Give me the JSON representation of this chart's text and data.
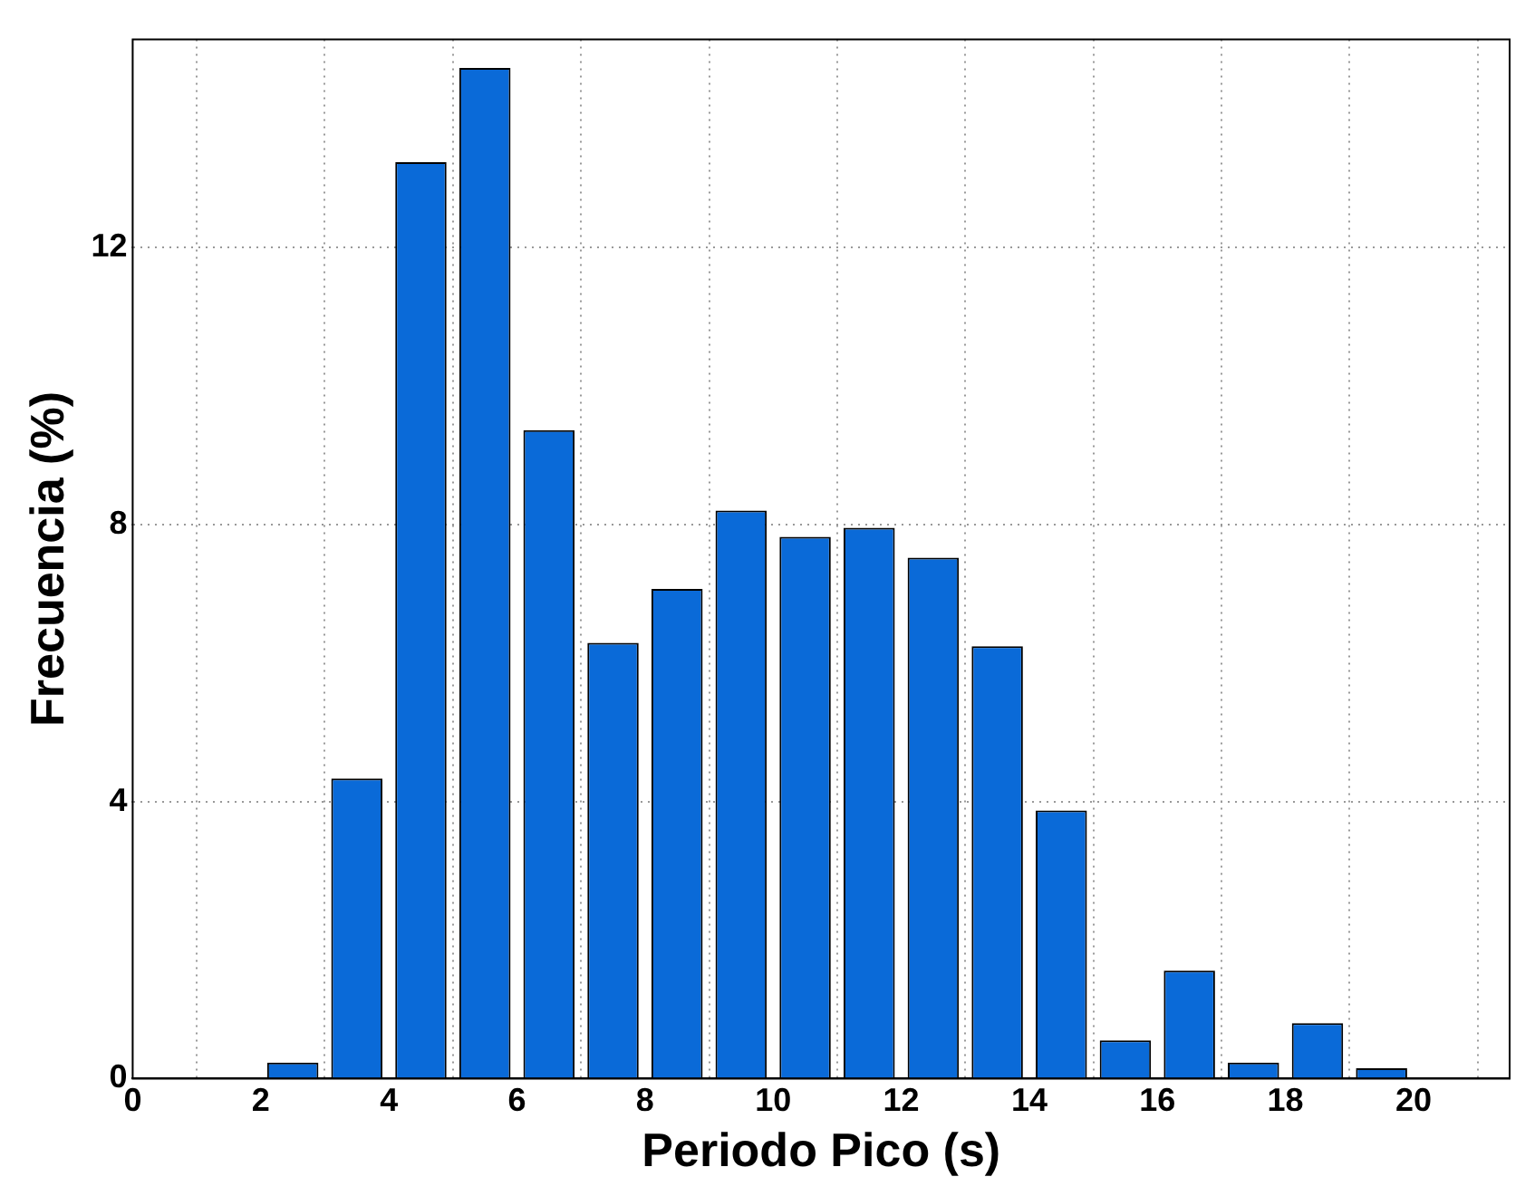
{
  "chart_data": {
    "type": "histogram",
    "xlabel": "Periodo Pico (s)",
    "ylabel": "Frecuencia (%)",
    "bins": [
      2,
      3,
      4,
      5,
      6,
      7,
      8,
      9,
      10,
      11,
      12,
      13,
      14,
      15,
      16,
      17,
      18,
      19,
      20
    ],
    "values": [
      0.23,
      4.33,
      13.23,
      14.59,
      9.36,
      6.29,
      7.07,
      8.2,
      7.82,
      7.95,
      7.52,
      6.24,
      3.87,
      0.55,
      1.56,
      0.23,
      0.8,
      0.15
    ],
    "color": "#0a6ad8",
    "xlim": [
      0,
      21.5
    ],
    "xticks": [
      0,
      2,
      4,
      6,
      8,
      10,
      12,
      14,
      16,
      18,
      20
    ],
    "ylim": [
      0,
      15
    ],
    "yticks": [
      0,
      4,
      8,
      12
    ],
    "grid": true
  }
}
